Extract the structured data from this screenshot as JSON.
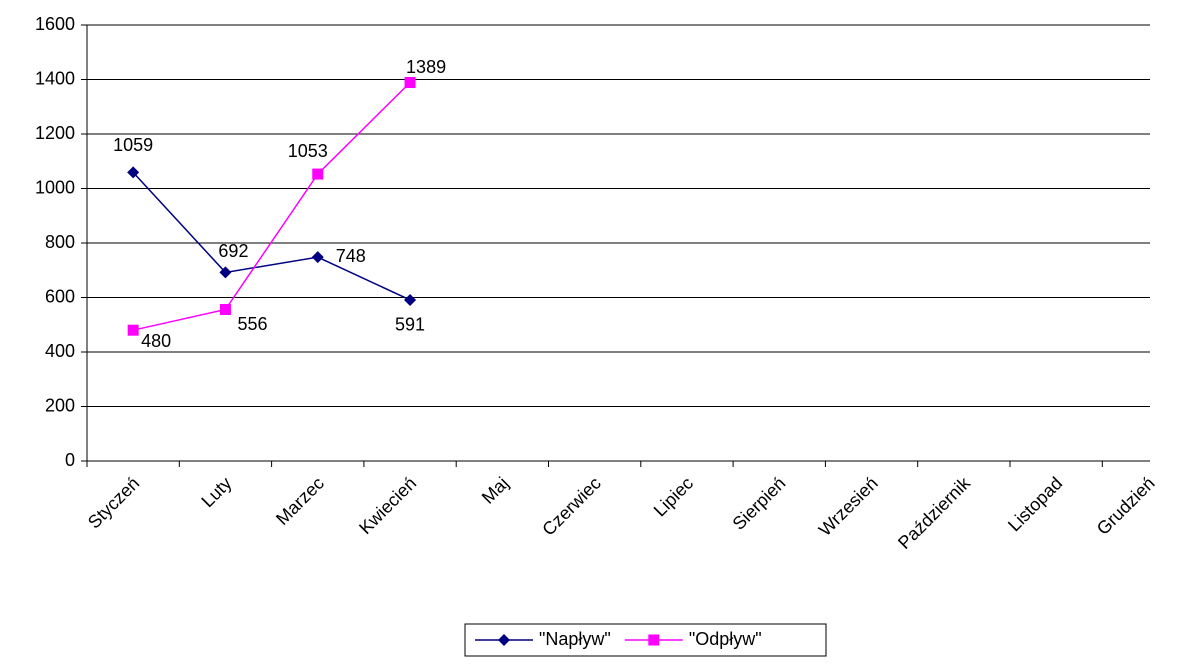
{
  "chart_data": {
    "type": "line",
    "categories": [
      "Styczeń",
      "Luty",
      "Marzec",
      "Kwiecień",
      "Maj",
      "Czerwiec",
      "Lipiec",
      "Sierpień",
      "Wrzesień",
      "Październik",
      "Listopad",
      "Grudzień"
    ],
    "series": [
      {
        "name": "\"Napływ\"",
        "color": "#000080",
        "marker": "diamond",
        "values": [
          1059,
          692,
          748,
          591,
          null,
          null,
          null,
          null,
          null,
          null,
          null,
          null
        ]
      },
      {
        "name": "\"Odpływ\"",
        "color": "#ff00ff",
        "marker": "square",
        "values": [
          480,
          556,
          1053,
          1389,
          null,
          null,
          null,
          null,
          null,
          null,
          null,
          null
        ]
      }
    ],
    "ylim": [
      0,
      1600
    ],
    "yticks": [
      0,
      200,
      400,
      600,
      800,
      1000,
      1200,
      1400,
      1600
    ],
    "grid": true,
    "legend": "bottom"
  }
}
